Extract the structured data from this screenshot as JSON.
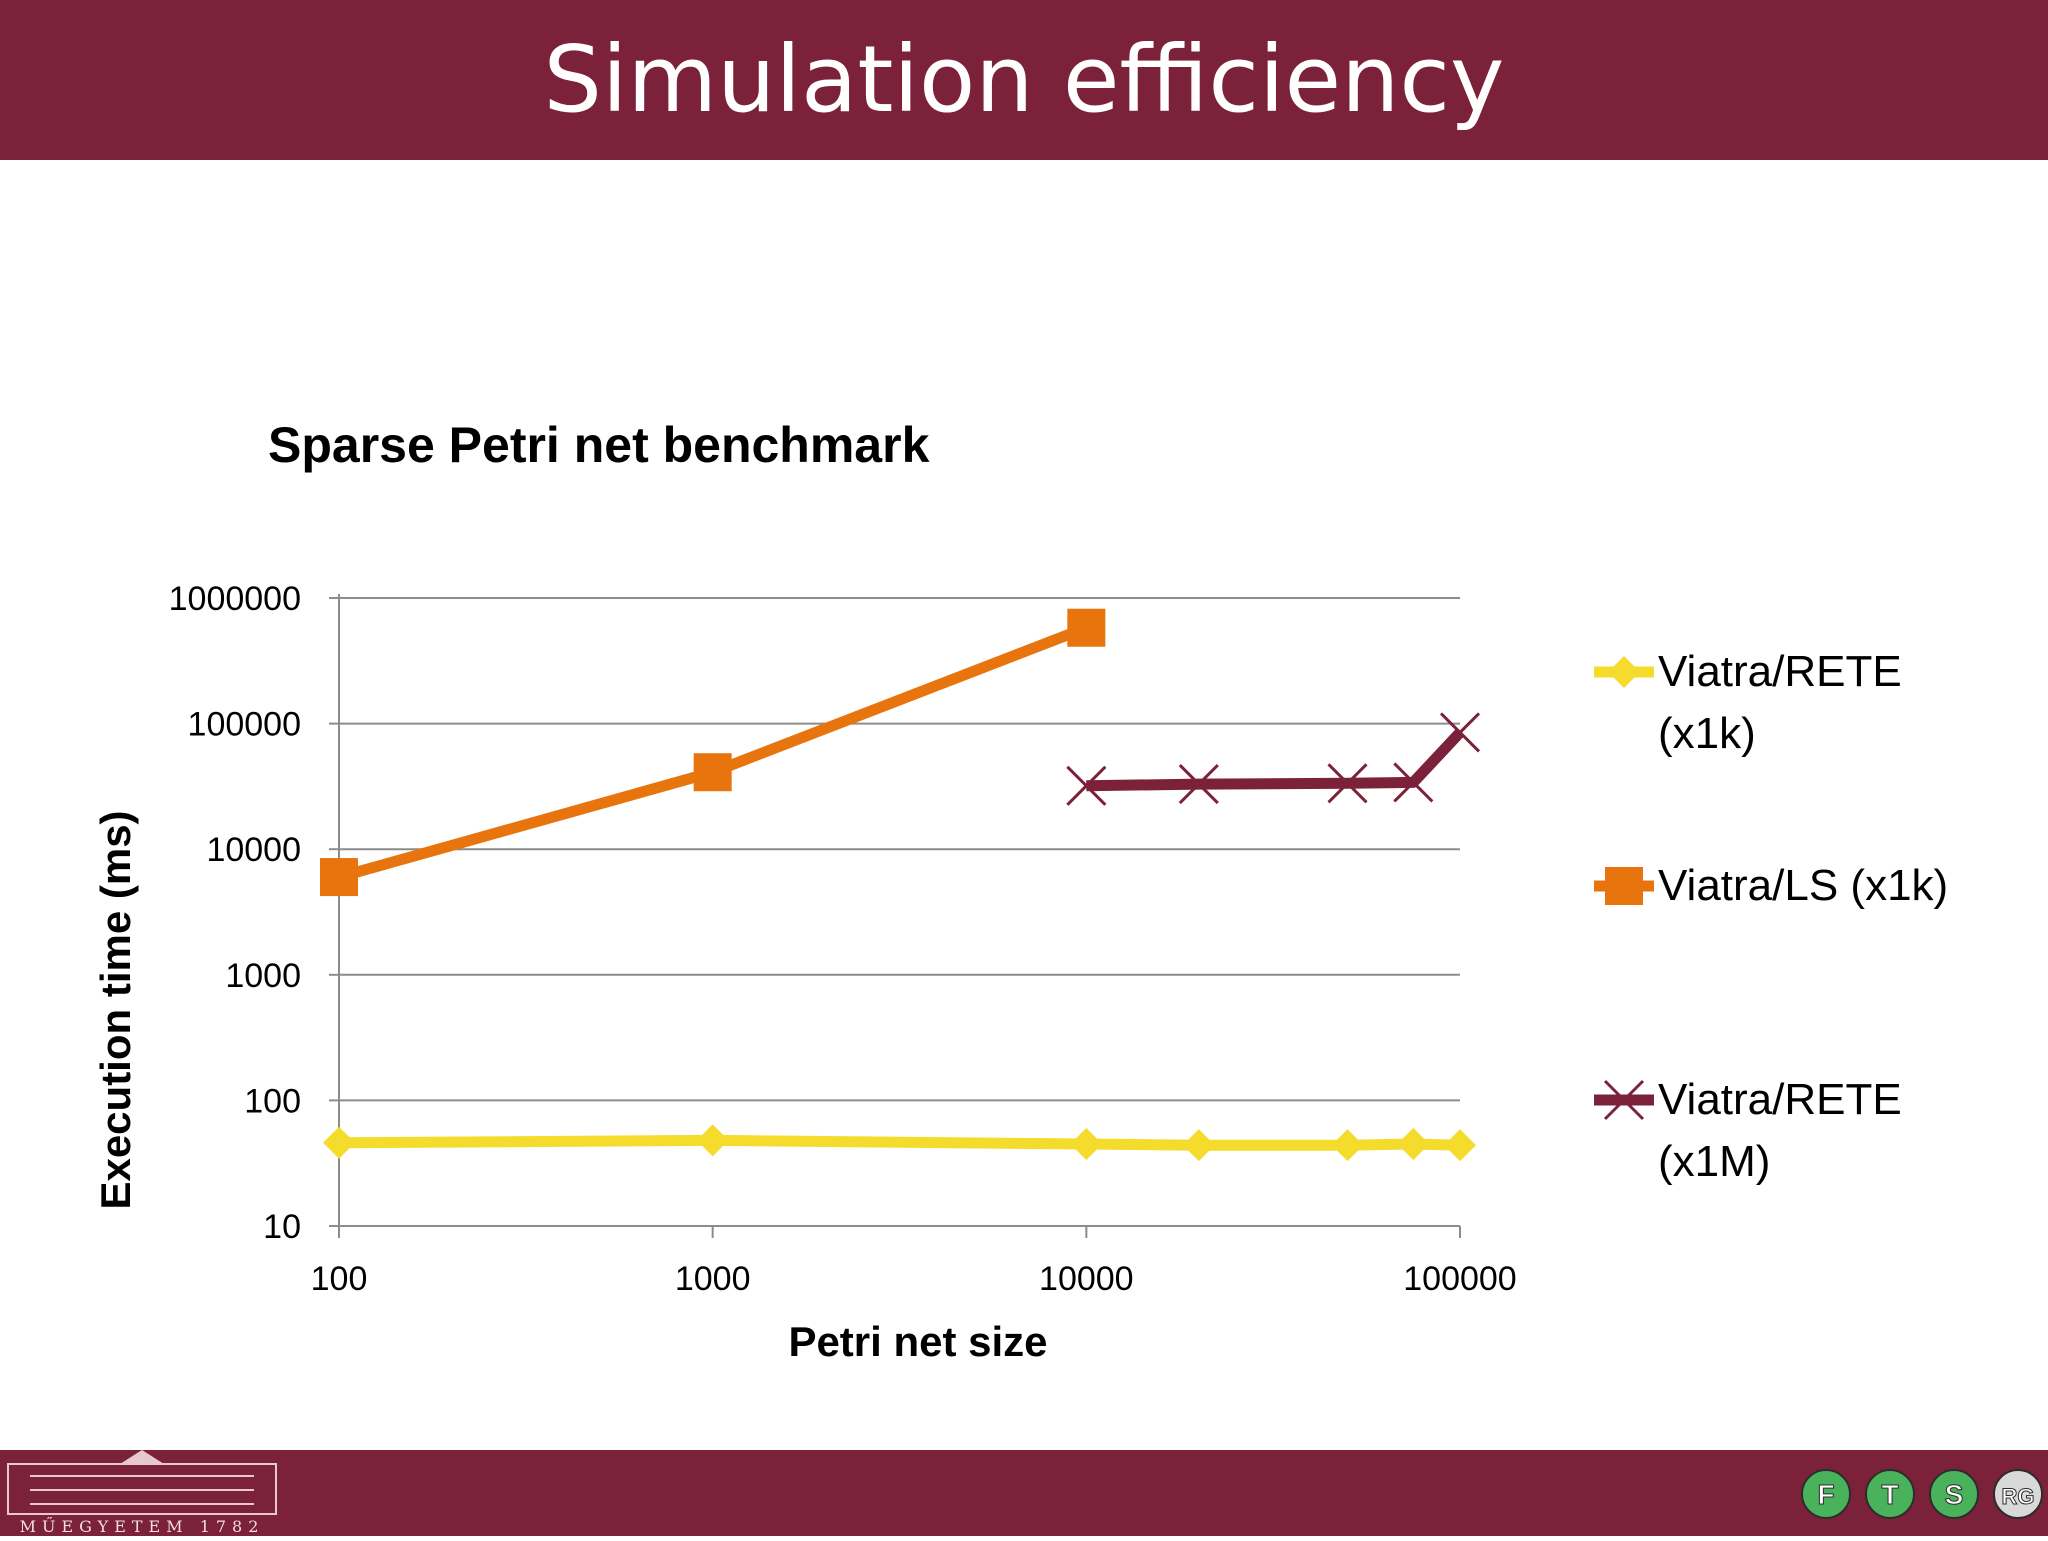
{
  "slide": {
    "title": "Simulation efficiency",
    "header_color": "#7b2139",
    "footer_color": "#7b2139"
  },
  "footer": {
    "university_logo_text": "MŰEGYETEM 1782",
    "group_logos": [
      "F",
      "T",
      "S",
      "RG"
    ]
  },
  "chart_data": {
    "type": "line",
    "title": "Sparse Petri net benchmark",
    "xlabel": "Petri net size",
    "ylabel": "Execution time (ms)",
    "x_scale": "log",
    "y_scale": "log",
    "xlim": [
      100,
      100000
    ],
    "ylim": [
      10,
      1000000
    ],
    "x_ticks": [
      "100",
      "1000",
      "10000",
      "100000"
    ],
    "y_ticks": [
      "10",
      "100",
      "1000",
      "10000",
      "100000",
      "1000000"
    ],
    "grid": "horizontal",
    "legend_position": "right",
    "series": [
      {
        "name": "Viatra/RETE (x1k)",
        "color": "#f5dc2c",
        "marker": "diamond",
        "x": [
          100,
          1000,
          10000,
          20000,
          50000,
          75000,
          100000
        ],
        "y": [
          46,
          48,
          45,
          44,
          44,
          45,
          44
        ]
      },
      {
        "name": "Viatra/LS (x1k)",
        "color": "#e8740e",
        "marker": "square",
        "x": [
          100,
          1000,
          10000
        ],
        "y": [
          6000,
          41000,
          580000
        ]
      },
      {
        "name": "Viatra/RETE (x1M)",
        "color": "#7b2139",
        "marker": "x",
        "x": [
          10000,
          20000,
          50000,
          75000,
          100000
        ],
        "y": [
          32000,
          33000,
          33500,
          34000,
          85000
        ]
      }
    ],
    "legend_lines": [
      [
        "Viatra/RETE",
        "(x1k)"
      ],
      [
        "Viatra/LS (x1k)"
      ],
      [
        "Viatra/RETE",
        "(x1M)"
      ]
    ]
  }
}
